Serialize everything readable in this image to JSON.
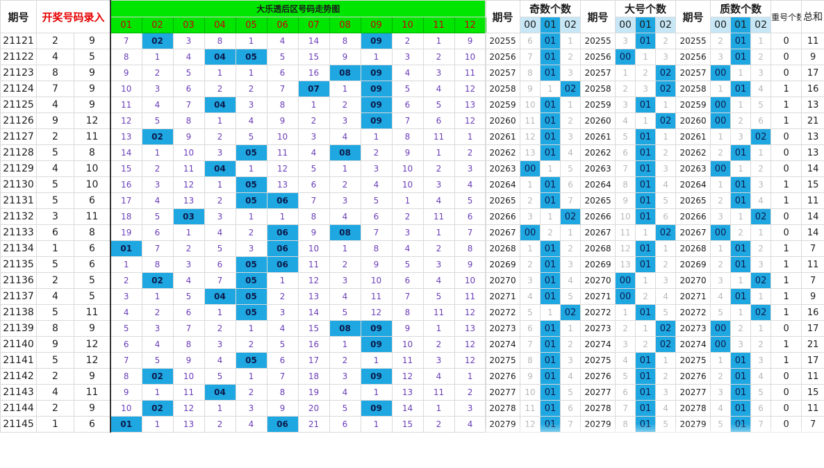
{
  "left": {
    "headers": {
      "period": "期号",
      "entry": "开奖号码录入"
    },
    "rows": [
      [
        "21121",
        "2",
        "9"
      ],
      [
        "21122",
        "4",
        "5"
      ],
      [
        "21123",
        "8",
        "9"
      ],
      [
        "21124",
        "7",
        "9"
      ],
      [
        "21125",
        "4",
        "9"
      ],
      [
        "21126",
        "9",
        "12"
      ],
      [
        "21127",
        "2",
        "11"
      ],
      [
        "21128",
        "5",
        "8"
      ],
      [
        "21129",
        "4",
        "10"
      ],
      [
        "21130",
        "5",
        "10"
      ],
      [
        "21131",
        "5",
        "6"
      ],
      [
        "21132",
        "3",
        "11"
      ],
      [
        "21133",
        "6",
        "8"
      ],
      [
        "21134",
        "1",
        "6"
      ],
      [
        "21135",
        "5",
        "6"
      ],
      [
        "21136",
        "2",
        "5"
      ],
      [
        "21137",
        "4",
        "5"
      ],
      [
        "21138",
        "5",
        "11"
      ],
      [
        "21139",
        "8",
        "9"
      ],
      [
        "21140",
        "9",
        "12"
      ],
      [
        "21141",
        "5",
        "12"
      ],
      [
        "21142",
        "2",
        "9"
      ],
      [
        "21143",
        "4",
        "11"
      ],
      [
        "21144",
        "2",
        "9"
      ],
      [
        "21145",
        "1",
        "6"
      ]
    ]
  },
  "trend": {
    "title": "大乐透后区号码走势图",
    "numbers": [
      "01",
      "02",
      "03",
      "04",
      "05",
      "06",
      "07",
      "08",
      "09",
      "10",
      "11",
      "12"
    ],
    "rows": [
      [
        "7",
        "02",
        "3",
        "8",
        "1",
        "4",
        "14",
        "8",
        "09",
        "2",
        "1",
        "9"
      ],
      [
        "8",
        "1",
        "4",
        "04",
        "05",
        "5",
        "15",
        "9",
        "1",
        "3",
        "2",
        "10"
      ],
      [
        "9",
        "2",
        "5",
        "1",
        "1",
        "6",
        "16",
        "08",
        "09",
        "4",
        "3",
        "11"
      ],
      [
        "10",
        "3",
        "6",
        "2",
        "2",
        "7",
        "07",
        "1",
        "09",
        "5",
        "4",
        "12"
      ],
      [
        "11",
        "4",
        "7",
        "04",
        "3",
        "8",
        "1",
        "2",
        "09",
        "6",
        "5",
        "13"
      ],
      [
        "12",
        "5",
        "8",
        "1",
        "4",
        "9",
        "2",
        "3",
        "09",
        "7",
        "6",
        "12"
      ],
      [
        "13",
        "02",
        "9",
        "2",
        "5",
        "10",
        "3",
        "4",
        "1",
        "8",
        "11",
        "1"
      ],
      [
        "14",
        "1",
        "10",
        "3",
        "05",
        "11",
        "4",
        "08",
        "2",
        "9",
        "1",
        "2"
      ],
      [
        "15",
        "2",
        "11",
        "04",
        "1",
        "12",
        "5",
        "1",
        "3",
        "10",
        "2",
        "3"
      ],
      [
        "16",
        "3",
        "12",
        "1",
        "05",
        "13",
        "6",
        "2",
        "4",
        "10",
        "3",
        "4"
      ],
      [
        "17",
        "4",
        "13",
        "2",
        "05",
        "06",
        "7",
        "3",
        "5",
        "1",
        "4",
        "5"
      ],
      [
        "18",
        "5",
        "03",
        "3",
        "1",
        "1",
        "8",
        "4",
        "6",
        "2",
        "11",
        "6"
      ],
      [
        "19",
        "6",
        "1",
        "4",
        "2",
        "06",
        "9",
        "08",
        "7",
        "3",
        "1",
        "7"
      ],
      [
        "01",
        "7",
        "2",
        "5",
        "3",
        "06",
        "10",
        "1",
        "8",
        "4",
        "2",
        "8"
      ],
      [
        "1",
        "8",
        "3",
        "6",
        "05",
        "06",
        "11",
        "2",
        "9",
        "5",
        "3",
        "9"
      ],
      [
        "2",
        "02",
        "4",
        "7",
        "05",
        "1",
        "12",
        "3",
        "10",
        "6",
        "4",
        "10"
      ],
      [
        "3",
        "1",
        "5",
        "04",
        "05",
        "2",
        "13",
        "4",
        "11",
        "7",
        "5",
        "11"
      ],
      [
        "4",
        "2",
        "6",
        "1",
        "05",
        "3",
        "14",
        "5",
        "12",
        "8",
        "11",
        "12"
      ],
      [
        "5",
        "3",
        "7",
        "2",
        "1",
        "4",
        "15",
        "08",
        "09",
        "9",
        "1",
        "13"
      ],
      [
        "6",
        "4",
        "8",
        "3",
        "2",
        "5",
        "16",
        "1",
        "09",
        "10",
        "2",
        "12"
      ],
      [
        "7",
        "5",
        "9",
        "4",
        "05",
        "6",
        "17",
        "2",
        "1",
        "11",
        "3",
        "12"
      ],
      [
        "8",
        "02",
        "10",
        "5",
        "1",
        "7",
        "18",
        "3",
        "09",
        "12",
        "4",
        "1"
      ],
      [
        "9",
        "1",
        "11",
        "04",
        "2",
        "8",
        "19",
        "4",
        "1",
        "13",
        "11",
        "2"
      ],
      [
        "10",
        "02",
        "12",
        "1",
        "3",
        "9",
        "20",
        "5",
        "09",
        "14",
        "1",
        "3"
      ],
      [
        "01",
        "1",
        "13",
        "2",
        "4",
        "06",
        "21",
        "6",
        "1",
        "15",
        "2",
        "4"
      ]
    ]
  },
  "right": {
    "headers": {
      "period": "期号",
      "odd_count": "奇数个数",
      "big_count": "大号个数",
      "prime_count": "质数个数",
      "repeat": "重号个数",
      "sum": "总和",
      "sub": [
        "00",
        "01",
        "02"
      ]
    },
    "rows": [
      {
        "p": "20255",
        "odd": [
          "6",
          "01",
          "1"
        ],
        "big": [
          "3",
          "01",
          "2"
        ],
        "prime": [
          "2",
          "01",
          "1"
        ],
        "rep": "0",
        "sum": "11"
      },
      {
        "p": "20256",
        "odd": [
          "7",
          "01",
          "2"
        ],
        "big": [
          "00",
          "1",
          "3"
        ],
        "prime": [
          "3",
          "01",
          "2"
        ],
        "rep": "0",
        "sum": "9"
      },
      {
        "p": "20257",
        "odd": [
          "8",
          "01",
          "3"
        ],
        "big": [
          "1",
          "2",
          "02"
        ],
        "prime": [
          "00",
          "1",
          "3"
        ],
        "rep": "0",
        "sum": "17"
      },
      {
        "p": "20258",
        "odd": [
          "9",
          "1",
          "02"
        ],
        "big": [
          "2",
          "3",
          "02"
        ],
        "prime": [
          "1",
          "01",
          "4"
        ],
        "rep": "1",
        "sum": "16"
      },
      {
        "p": "20259",
        "odd": [
          "10",
          "01",
          "1"
        ],
        "big": [
          "3",
          "01",
          "1"
        ],
        "prime": [
          "00",
          "1",
          "5"
        ],
        "rep": "1",
        "sum": "13"
      },
      {
        "p": "20260",
        "odd": [
          "11",
          "01",
          "2"
        ],
        "big": [
          "4",
          "1",
          "02"
        ],
        "prime": [
          "00",
          "2",
          "6"
        ],
        "rep": "1",
        "sum": "21"
      },
      {
        "p": "20261",
        "odd": [
          "12",
          "01",
          "3"
        ],
        "big": [
          "5",
          "01",
          "1"
        ],
        "prime": [
          "1",
          "3",
          "02"
        ],
        "rep": "0",
        "sum": "13"
      },
      {
        "p": "20262",
        "odd": [
          "13",
          "01",
          "4"
        ],
        "big": [
          "6",
          "01",
          "2"
        ],
        "prime": [
          "2",
          "01",
          "1"
        ],
        "rep": "0",
        "sum": "13"
      },
      {
        "p": "20263",
        "odd": [
          "00",
          "1",
          "5"
        ],
        "big": [
          "7",
          "01",
          "3"
        ],
        "prime": [
          "00",
          "1",
          "2"
        ],
        "rep": "0",
        "sum": "14"
      },
      {
        "p": "20264",
        "odd": [
          "1",
          "01",
          "6"
        ],
        "big": [
          "8",
          "01",
          "4"
        ],
        "prime": [
          "1",
          "01",
          "3"
        ],
        "rep": "1",
        "sum": "15"
      },
      {
        "p": "20265",
        "odd": [
          "2",
          "01",
          "7"
        ],
        "big": [
          "9",
          "01",
          "5"
        ],
        "prime": [
          "2",
          "01",
          "4"
        ],
        "rep": "1",
        "sum": "11"
      },
      {
        "p": "20266",
        "odd": [
          "3",
          "1",
          "02"
        ],
        "big": [
          "10",
          "01",
          "6"
        ],
        "prime": [
          "3",
          "1",
          "02"
        ],
        "rep": "0",
        "sum": "14"
      },
      {
        "p": "20267",
        "odd": [
          "00",
          "2",
          "1"
        ],
        "big": [
          "11",
          "1",
          "02"
        ],
        "prime": [
          "00",
          "2",
          "1"
        ],
        "rep": "0",
        "sum": "14"
      },
      {
        "p": "20268",
        "odd": [
          "1",
          "01",
          "2"
        ],
        "big": [
          "12",
          "01",
          "1"
        ],
        "prime": [
          "1",
          "01",
          "2"
        ],
        "rep": "1",
        "sum": "7"
      },
      {
        "p": "20269",
        "odd": [
          "2",
          "01",
          "3"
        ],
        "big": [
          "13",
          "01",
          "2"
        ],
        "prime": [
          "2",
          "01",
          "3"
        ],
        "rep": "1",
        "sum": "11"
      },
      {
        "p": "20270",
        "odd": [
          "3",
          "01",
          "4"
        ],
        "big": [
          "00",
          "1",
          "3"
        ],
        "prime": [
          "3",
          "1",
          "02"
        ],
        "rep": "1",
        "sum": "7"
      },
      {
        "p": "20271",
        "odd": [
          "4",
          "01",
          "5"
        ],
        "big": [
          "00",
          "2",
          "4"
        ],
        "prime": [
          "4",
          "01",
          "1"
        ],
        "rep": "1",
        "sum": "9"
      },
      {
        "p": "20272",
        "odd": [
          "5",
          "1",
          "02"
        ],
        "big": [
          "1",
          "01",
          "5"
        ],
        "prime": [
          "5",
          "1",
          "02"
        ],
        "rep": "1",
        "sum": "16"
      },
      {
        "p": "20273",
        "odd": [
          "6",
          "01",
          "1"
        ],
        "big": [
          "2",
          "1",
          "02"
        ],
        "prime": [
          "00",
          "2",
          "1"
        ],
        "rep": "0",
        "sum": "17"
      },
      {
        "p": "20274",
        "odd": [
          "7",
          "01",
          "2"
        ],
        "big": [
          "3",
          "2",
          "02"
        ],
        "prime": [
          "00",
          "3",
          "2"
        ],
        "rep": "1",
        "sum": "21"
      },
      {
        "p": "20275",
        "odd": [
          "8",
          "01",
          "3"
        ],
        "big": [
          "4",
          "01",
          "1"
        ],
        "prime": [
          "1",
          "01",
          "3"
        ],
        "rep": "1",
        "sum": "17"
      },
      {
        "p": "20276",
        "odd": [
          "9",
          "01",
          "4"
        ],
        "big": [
          "5",
          "01",
          "2"
        ],
        "prime": [
          "2",
          "01",
          "4"
        ],
        "rep": "0",
        "sum": "11"
      },
      {
        "p": "20277",
        "odd": [
          "10",
          "01",
          "5"
        ],
        "big": [
          "6",
          "01",
          "3"
        ],
        "prime": [
          "3",
          "01",
          "5"
        ],
        "rep": "0",
        "sum": "15"
      },
      {
        "p": "20278",
        "odd": [
          "11",
          "01",
          "6"
        ],
        "big": [
          "7",
          "01",
          "4"
        ],
        "prime": [
          "4",
          "01",
          "6"
        ],
        "rep": "0",
        "sum": "11"
      },
      {
        "p": "20279",
        "odd": [
          "12",
          "01",
          "7"
        ],
        "big": [
          "8",
          "01",
          "5"
        ],
        "prime": [
          "5",
          "01",
          "7"
        ],
        "rep": "0",
        "sum": "7"
      }
    ]
  }
}
